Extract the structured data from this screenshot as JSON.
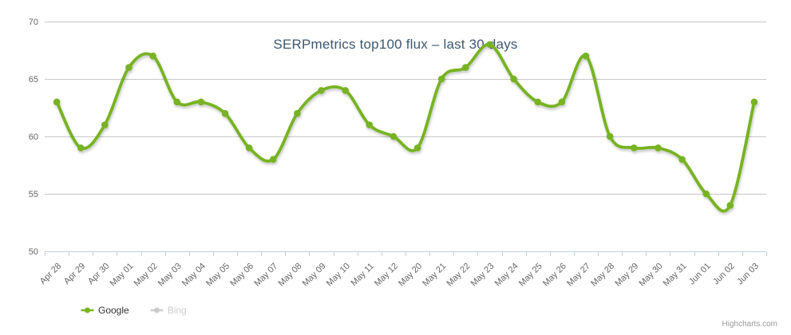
{
  "chart_data": {
    "type": "line",
    "title": "SERPmetrics top100 flux – last 30 days",
    "categories": [
      "Apr 28",
      "Apr 29",
      "Apr 30",
      "May 01",
      "May 02",
      "May 03",
      "May 04",
      "May 05",
      "May 06",
      "May 07",
      "May 08",
      "May 09",
      "May 10",
      "May 11",
      "May 12",
      "May 20",
      "May 21",
      "May 22",
      "May 23",
      "May 24",
      "May 25",
      "May 26",
      "May 27",
      "May 28",
      "May 29",
      "May 30",
      "May 31",
      "Jun 01",
      "Jun 02",
      "Jun 03"
    ],
    "series": [
      {
        "name": "Google",
        "color": "#77B322",
        "visible": true,
        "values": [
          63,
          59,
          61,
          66,
          67,
          63,
          63,
          62,
          59,
          58,
          62,
          64,
          64,
          61,
          60,
          59,
          65,
          66,
          68,
          65,
          63,
          63,
          67,
          60,
          59,
          59,
          58,
          55,
          54,
          63
        ]
      },
      {
        "name": "Bing",
        "color": "#CCCCCC",
        "visible": false,
        "values": []
      }
    ],
    "ylim": [
      50,
      70
    ],
    "yticks": [
      50,
      55,
      60,
      65,
      70
    ],
    "grid": true,
    "line_style": "spline",
    "marker": "circle",
    "legend_position": "bottom-left"
  },
  "credits": {
    "label": "Highcharts.com"
  },
  "colors": {
    "series_green": "#77B322",
    "title": "#3E576F",
    "axis_label": "#666666",
    "grid_line": "#C8C8C8",
    "axis_line": "#C0D0E0",
    "legend_text": "#333333",
    "legend_disabled": "#CCCCCC",
    "credits": "#999999",
    "background": "#FFFFFF"
  }
}
